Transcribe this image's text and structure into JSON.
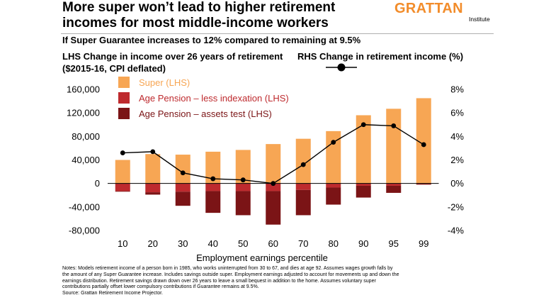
{
  "header": {
    "title": "More super won’t lead to higher retirement incomes for most middle-income workers",
    "brand": "GRATTAN",
    "brand_sub": "Institute",
    "subtitle": "If Super Guarantee increases to 12% compared to remaining at 9.5%"
  },
  "colors": {
    "brand": "#f28c2a",
    "super": "#f7a654",
    "pension_indexation": "#be2a2e",
    "pension_assets": "#7b1416",
    "line": "#000000"
  },
  "chart_data": {
    "type": "bar",
    "title": "More super won’t lead to higher retirement incomes for most middle-income workers",
    "subtitle": "If Super Guarantee increases to 12% compared to remaining at 9.5%",
    "xlabel": "Employment earnings percentile",
    "ylabel": "LHS Change in income over 26 years of retirement ($2015-16, CPI deflated)",
    "y2label": "RHS Change in retirement income (%)",
    "categories": [
      "10",
      "20",
      "30",
      "40",
      "50",
      "60",
      "70",
      "80",
      "90",
      "95",
      "99"
    ],
    "ylim": [
      -80000,
      160000
    ],
    "y2lim": [
      -4,
      8
    ],
    "yticks": [
      "160,000",
      "120,000",
      "80,000",
      "40,000",
      "0",
      "-40,000",
      "-80,000"
    ],
    "y2ticks": [
      "8%",
      "6%",
      "4%",
      "2%",
      "0%",
      "-2%",
      "-4%"
    ],
    "series": [
      {
        "name": "Super (LHS)",
        "kind": "bar",
        "color": "#f7a654",
        "values": [
          40000,
          50000,
          49000,
          54000,
          57000,
          67000,
          76000,
          89000,
          116000,
          127000,
          145000
        ]
      },
      {
        "name": "Age Pension – less indexation (LHS)",
        "kind": "bar",
        "color": "#be2a2e",
        "values": [
          -13000,
          -15000,
          -14000,
          -13000,
          -13000,
          -13000,
          -11000,
          -7000,
          -4000,
          -4000,
          -1000
        ]
      },
      {
        "name": "Age Pension – assets test (LHS)",
        "kind": "bar",
        "color": "#7b1416",
        "values": [
          -1000,
          -4000,
          -24000,
          -37000,
          -41000,
          -57000,
          -43000,
          -29000,
          -20000,
          -12000,
          -1000
        ]
      },
      {
        "name": "RHS Change in retirement income (%)",
        "kind": "line",
        "axis": "right",
        "color": "#000000",
        "values": [
          2.6,
          2.7,
          0.9,
          0.4,
          0.3,
          0.0,
          1.6,
          3.5,
          5.0,
          4.9,
          3.3
        ]
      }
    ],
    "grid": false,
    "legend": "top-left"
  },
  "notes": {
    "line1": "Notes: Models retirement income of a person born in 1985, who works uninterrupted from 30 to 67, and dies at age 92. Assumes wages growth falls by",
    "line2": "the amount of any Super Guarantee increase. Includes savings outside super. Employment earnings adjusted to account for movements up and down the",
    "line3": "earnings distribution. Retirement savings drawn down over 26 years to leave a small bequest in addition to the home. Assumes voluntary super",
    "line4": "contributions partially offset lower compulsory contributions if Guarantee remains at 9.5%.",
    "source": "Source: Grattan Retirement Income Projector."
  }
}
